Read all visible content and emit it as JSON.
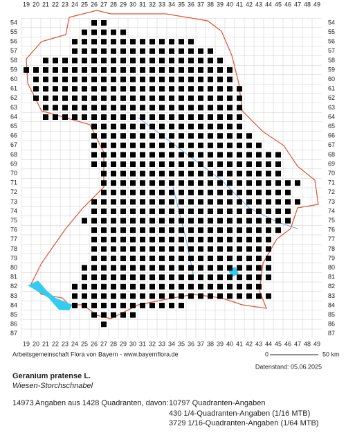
{
  "map": {
    "column_labels": [
      19,
      20,
      21,
      22,
      23,
      24,
      25,
      26,
      27,
      28,
      29,
      30,
      31,
      32,
      33,
      34,
      35,
      36,
      37,
      38,
      39,
      40,
      41,
      42,
      43,
      44,
      45,
      46,
      47,
      48,
      49
    ],
    "row_labels": [
      54,
      55,
      56,
      57,
      58,
      59,
      60,
      61,
      62,
      63,
      64,
      65,
      66,
      67,
      68,
      69,
      70,
      71,
      72,
      73,
      74,
      75,
      76,
      77,
      78,
      79,
      80,
      81,
      82,
      83,
      84,
      85,
      86,
      87
    ],
    "occupied_rows": [
      {
        "row": 54,
        "from": 26,
        "to": 27
      },
      {
        "row": 55,
        "from": 25,
        "to": 29
      },
      {
        "row": 56,
        "from": 24,
        "to": 36
      },
      {
        "row": 57,
        "from": 24,
        "to": 38
      },
      {
        "row": 58,
        "from": 21,
        "to": 39
      },
      {
        "row": 59,
        "from": 19,
        "to": 40
      },
      {
        "row": 60,
        "from": 20,
        "to": 40
      },
      {
        "row": 61,
        "from": 20,
        "to": 41
      },
      {
        "row": 62,
        "from": 20,
        "to": 41
      },
      {
        "row": 63,
        "from": 21,
        "to": 41
      },
      {
        "row": 64,
        "from": 21,
        "to": 41
      },
      {
        "row": 65,
        "from": 26,
        "to": 41
      },
      {
        "row": 66,
        "from": 26,
        "to": 42
      },
      {
        "row": 67,
        "from": 26,
        "to": 43
      },
      {
        "row": 68,
        "from": 26,
        "to": 45
      },
      {
        "row": 69,
        "from": 26,
        "to": 45
      },
      {
        "row": 70,
        "from": 27,
        "to": 45
      },
      {
        "row": 71,
        "from": 27,
        "to": 47
      },
      {
        "row": 72,
        "from": 27,
        "to": 46
      },
      {
        "row": 73,
        "from": 26,
        "to": 47
      },
      {
        "row": 74,
        "from": 26,
        "to": 46
      },
      {
        "row": 75,
        "from": 25,
        "to": 46
      },
      {
        "row": 76,
        "from": 26,
        "to": 45
      },
      {
        "row": 77,
        "from": 26,
        "to": 44
      },
      {
        "row": 78,
        "from": 26,
        "to": 44
      },
      {
        "row": 79,
        "from": 26,
        "to": 44
      },
      {
        "row": 80,
        "from": 25,
        "to": 44
      },
      {
        "row": 81,
        "from": 25,
        "to": 44
      },
      {
        "row": 82,
        "from": 24,
        "to": 43
      },
      {
        "row": 83,
        "from": 24,
        "to": 44
      },
      {
        "row": 84,
        "from": 24,
        "to": 35
      },
      {
        "row": 85,
        "from": 26,
        "to": 30
      },
      {
        "row": 86,
        "from": 27,
        "to": 27
      }
    ],
    "credit": "Arbeitsgemeinschaft Flora von Bayern - www.bayernflora.de",
    "scale_start": "0",
    "scale_end": "50 km",
    "date": "Datenstand: 05.06.2025",
    "title": "Geranium pratense L.",
    "subtitle": "Wiesen-Storchschnabel",
    "summary": "14973 Angaben aus 1428 Quadranten, davon:",
    "detail_1": "10797 Quadranten-Angaben",
    "detail_2": "430 1/4-Quadranten-Angaben (1/16 MTB)",
    "detail_3": "3729 1/16-Quadranten-Angaben (1/64 MTB)"
  }
}
